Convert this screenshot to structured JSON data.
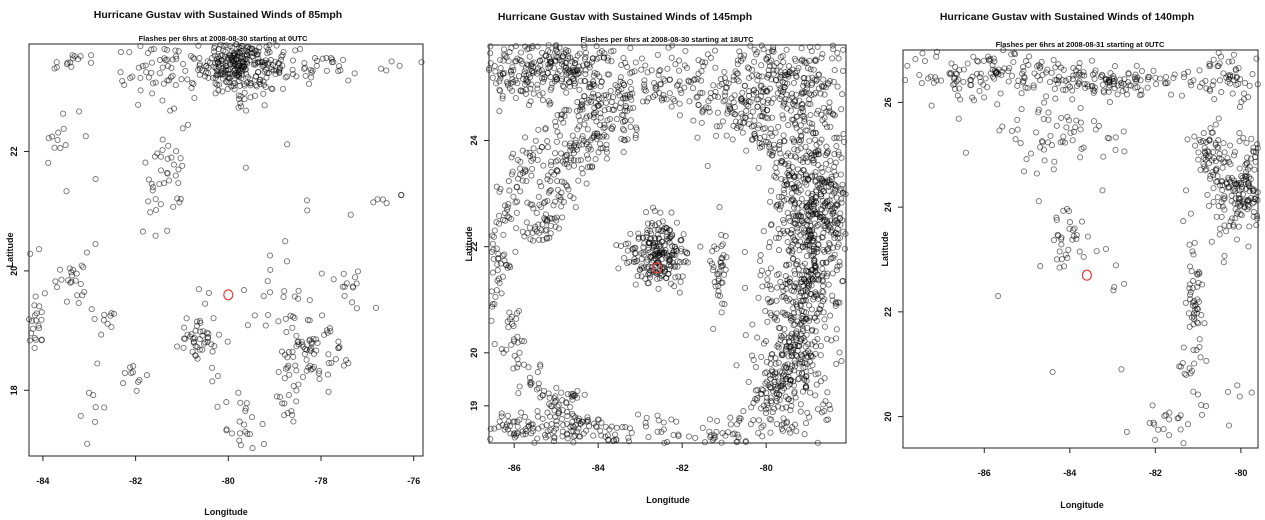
{
  "chart_data": [
    {
      "type": "scatter",
      "title": "Hurricane Gustav with Sustained Winds of 85mph",
      "subtitle": "Flashes per 6hrs at 2008-08-30 starting at 0UTC",
      "xlabel": "Longitude",
      "ylabel": "Latitude",
      "xlim": [
        -84.3,
        -75.8
      ],
      "ylim": [
        16.9,
        23.8
      ],
      "xticks": [
        -84,
        -82,
        -80,
        -78,
        -76
      ],
      "yticks": [
        18,
        20,
        22
      ],
      "xtick_labels": [
        "-84",
        "-82",
        "-80",
        "-78",
        "-76"
      ],
      "ytick_labels": [
        "18",
        "20",
        "22"
      ],
      "center": {
        "x": -80.0,
        "y": 19.6
      },
      "center_color": "#e53935",
      "point_color": "#000000",
      "clusters": [
        {
          "x": -79.8,
          "y": 23.45,
          "sx": 0.4,
          "sy": 0.25,
          "n": 260
        },
        {
          "x": -78.6,
          "y": 23.5,
          "sx": 1.0,
          "sy": 0.15,
          "n": 90
        },
        {
          "x": -81.5,
          "y": 23.3,
          "sx": 0.5,
          "sy": 0.3,
          "n": 60
        },
        {
          "x": -81.3,
          "y": 21.6,
          "sx": 0.25,
          "sy": 0.45,
          "n": 35
        },
        {
          "x": -83.5,
          "y": 23.5,
          "sx": 0.2,
          "sy": 0.1,
          "n": 14
        },
        {
          "x": -83.7,
          "y": 22.2,
          "sx": 0.25,
          "sy": 0.35,
          "n": 12
        },
        {
          "x": -84.15,
          "y": 19.2,
          "sx": 0.15,
          "sy": 0.25,
          "n": 25
        },
        {
          "x": -83.4,
          "y": 19.9,
          "sx": 0.2,
          "sy": 0.3,
          "n": 22
        },
        {
          "x": -82.6,
          "y": 19.2,
          "sx": 0.12,
          "sy": 0.12,
          "n": 10
        },
        {
          "x": -80.7,
          "y": 18.9,
          "sx": 0.3,
          "sy": 0.15,
          "n": 35
        },
        {
          "x": -77.4,
          "y": 19.8,
          "sx": 0.2,
          "sy": 0.2,
          "n": 14
        },
        {
          "x": -78.6,
          "y": 19.1,
          "sx": 0.3,
          "sy": 0.5,
          "n": 45
        },
        {
          "x": -78.0,
          "y": 18.6,
          "sx": 0.35,
          "sy": 0.3,
          "n": 40
        },
        {
          "x": -78.7,
          "y": 17.9,
          "sx": 0.2,
          "sy": 0.3,
          "n": 18
        },
        {
          "x": -79.7,
          "y": 17.5,
          "sx": 0.25,
          "sy": 0.3,
          "n": 22
        },
        {
          "x": -82.0,
          "y": 18.2,
          "sx": 0.15,
          "sy": 0.2,
          "n": 10
        },
        {
          "x": -80.5,
          "y": 18.5,
          "sx": 0.2,
          "sy": 0.3,
          "n": 12
        },
        {
          "x": -76.5,
          "y": 21.2,
          "sx": 0.25,
          "sy": 0.05,
          "n": 5
        },
        {
          "x": -82.9,
          "y": 17.8,
          "sx": 0.15,
          "sy": 0.35,
          "n": 8
        },
        {
          "x": -80.5,
          "y": 20.5,
          "sx": 2.4,
          "sy": 1.7,
          "n": 30
        }
      ]
    },
    {
      "type": "scatter",
      "title": "Hurricane Gustav with Sustained Winds of 145mph",
      "subtitle": "Flashes per 6hrs at 2008-08-30 starting at 18UTC",
      "xlabel": "Longitude",
      "ylabel": "Latitude",
      "xlim": [
        -86.6,
        -78.1
      ],
      "ylim": [
        18.3,
        25.8
      ],
      "xticks": [
        -86,
        -84,
        -82,
        -80
      ],
      "yticks": [
        19,
        20,
        22,
        24
      ],
      "xtick_labels": [
        "-86",
        "-84",
        "-82",
        "-80"
      ],
      "ytick_labels": [
        "19",
        "20",
        "22",
        "24"
      ],
      "center": {
        "x": -82.6,
        "y": 21.6
      },
      "center_color": "#e53935",
      "point_color": "#000000",
      "arcs": [
        {
          "cx": -82.6,
          "cy": 21.6,
          "rx": 3.8,
          "ry": 3.4,
          "a0": 0,
          "a1": 360,
          "w": 0.2,
          "n": 700
        },
        {
          "cx": -82.6,
          "cy": 21.6,
          "rx": 2.9,
          "ry": 2.8,
          "a0": 100,
          "a1": 170,
          "w": 0.25,
          "n": 200
        }
      ],
      "clusters": [
        {
          "x": -85.3,
          "y": 25.4,
          "sx": 1.2,
          "sy": 0.35,
          "n": 400
        },
        {
          "x": -80.0,
          "y": 25.1,
          "sx": 1.2,
          "sy": 0.5,
          "n": 350
        },
        {
          "x": -79.0,
          "y": 22.5,
          "sx": 0.45,
          "sy": 1.4,
          "n": 400
        },
        {
          "x": -79.5,
          "y": 20.0,
          "sx": 0.45,
          "sy": 1.3,
          "n": 300
        },
        {
          "x": -78.4,
          "y": 22.8,
          "sx": 0.25,
          "sy": 0.6,
          "n": 120
        },
        {
          "x": -82.6,
          "y": 21.9,
          "sx": 0.35,
          "sy": 0.3,
          "n": 220
        },
        {
          "x": -85.3,
          "y": 18.6,
          "sx": 1.3,
          "sy": 0.15,
          "n": 140
        },
        {
          "x": -81.1,
          "y": 21.6,
          "sx": 0.1,
          "sy": 0.4,
          "n": 40
        },
        {
          "x": -84.6,
          "y": 19.2,
          "sx": 0.12,
          "sy": 0.12,
          "n": 12
        }
      ]
    },
    {
      "type": "scatter",
      "title": "Hurricane Gustav with Sustained Winds of 140mph",
      "subtitle": "Flashes per 6hrs at 2008-08-31 starting at 0UTC",
      "xlabel": "Longitude",
      "ylabel": "Latitude",
      "xlim": [
        -87.9,
        -79.6
      ],
      "ylim": [
        19.4,
        27.0
      ],
      "xticks": [
        -86,
        -84,
        -82,
        -80
      ],
      "yticks": [
        20,
        22,
        24,
        26
      ],
      "xtick_labels": [
        "-86",
        "-84",
        "-82",
        "-80"
      ],
      "ytick_labels": [
        "20",
        "22",
        "24",
        "26"
      ],
      "center": {
        "x": -83.6,
        "y": 22.7
      },
      "center_color": "#e53935",
      "point_color": "#000000",
      "clusters": [
        {
          "x": -86.0,
          "y": 26.6,
          "sx": 1.0,
          "sy": 0.3,
          "n": 120
        },
        {
          "x": -83.3,
          "y": 26.4,
          "sx": 1.0,
          "sy": 0.15,
          "n": 140
        },
        {
          "x": -80.3,
          "y": 26.5,
          "sx": 0.4,
          "sy": 0.3,
          "n": 60
        },
        {
          "x": -80.0,
          "y": 24.3,
          "sx": 0.45,
          "sy": 0.5,
          "n": 220
        },
        {
          "x": -80.8,
          "y": 25.1,
          "sx": 0.2,
          "sy": 0.3,
          "n": 40
        },
        {
          "x": -81.1,
          "y": 22.2,
          "sx": 0.1,
          "sy": 0.5,
          "n": 50
        },
        {
          "x": -84.6,
          "y": 25.4,
          "sx": 0.9,
          "sy": 0.3,
          "n": 60
        },
        {
          "x": -84.0,
          "y": 23.4,
          "sx": 0.3,
          "sy": 0.3,
          "n": 30
        },
        {
          "x": -81.6,
          "y": 19.8,
          "sx": 0.3,
          "sy": 0.3,
          "n": 20
        },
        {
          "x": -81.2,
          "y": 20.9,
          "sx": 0.1,
          "sy": 0.1,
          "n": 8
        },
        {
          "x": -83.0,
          "y": 23.0,
          "sx": 2.5,
          "sy": 2.0,
          "n": 25
        },
        {
          "x": -80.4,
          "y": 20.6,
          "sx": 0.4,
          "sy": 0.6,
          "n": 10
        }
      ]
    }
  ]
}
